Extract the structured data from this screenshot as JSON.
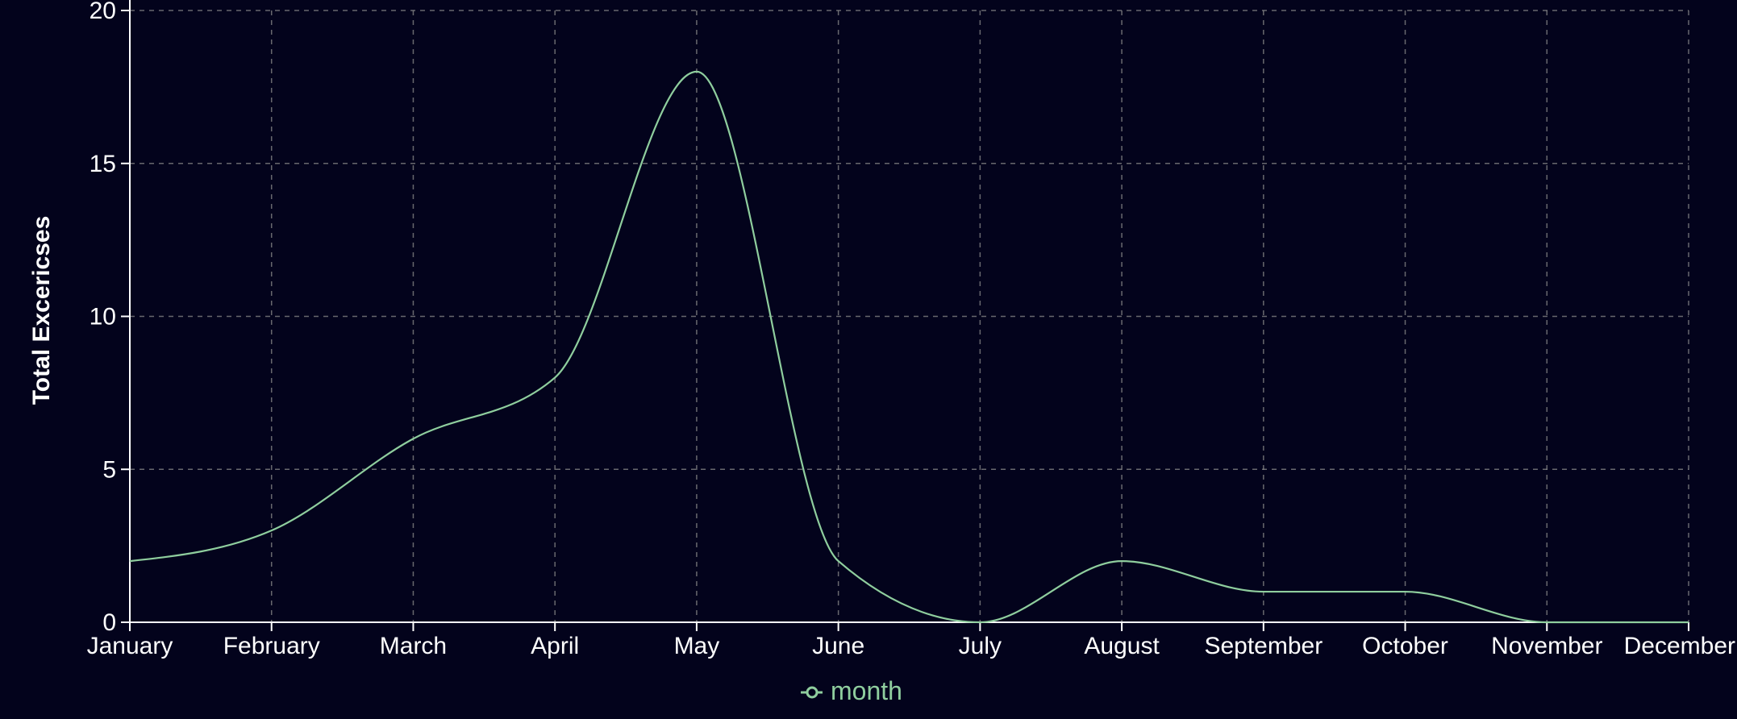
{
  "chart_data": {
    "type": "line",
    "categories": [
      "January",
      "February",
      "March",
      "April",
      "May",
      "June",
      "July",
      "August",
      "September",
      "October",
      "November",
      "December"
    ],
    "series": [
      {
        "name": "month",
        "values": [
          2,
          3,
          6,
          8,
          18,
          2,
          0,
          2,
          1,
          1,
          0,
          0
        ],
        "color": "#8fce9e"
      }
    ],
    "ylabel": "Total Excericses",
    "xlabel": "",
    "ylim": [
      0,
      20
    ],
    "yticks": [
      0,
      5,
      10,
      15,
      20
    ],
    "grid": true,
    "legend_position": "bottom-center",
    "curve": "monotone",
    "colors": {
      "background": "#03031c",
      "axis": "#ffffff",
      "grid": "#8a8a8a",
      "line": "#8fce9e"
    }
  }
}
